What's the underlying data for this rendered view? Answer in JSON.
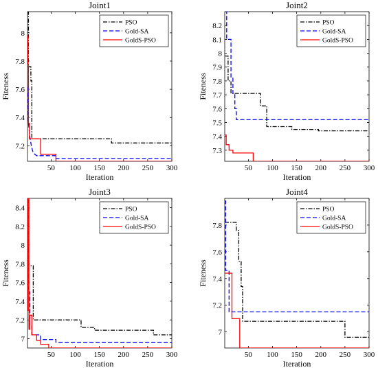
{
  "chart_data": [
    {
      "type": "line",
      "title": "Joint1",
      "xlabel": "Iteration",
      "ylabel": "Fiteness",
      "xlim": [
        1,
        300
      ],
      "ylim": [
        7.09,
        8.15
      ],
      "xticks": [
        50,
        100,
        150,
        200,
        250,
        300
      ],
      "yticks": [
        7.2,
        7.4,
        7.6,
        7.8,
        8
      ],
      "ytick_labels": [
        "7.2",
        "7.4",
        "7.6",
        "7.8",
        "8"
      ],
      "grid": false,
      "legend_position": "top-right",
      "series": [
        {
          "name": "PSO",
          "color": "#000000",
          "dash": "dashdot",
          "x": [
            1,
            3,
            3,
            8,
            8,
            10,
            10,
            175,
            175,
            300
          ],
          "y": [
            8.15,
            8.15,
            7.76,
            7.76,
            7.66,
            7.66,
            7.25,
            7.25,
            7.22,
            7.22
          ]
        },
        {
          "name": "Gold-SA",
          "color": "#0000ff",
          "dash": "dashed",
          "x": [
            1,
            3,
            6,
            9,
            12,
            16,
            20,
            28,
            28,
            60,
            60,
            300
          ],
          "y": [
            7.62,
            7.36,
            7.26,
            7.2,
            7.16,
            7.14,
            7.13,
            7.13,
            7.13,
            7.13,
            7.11,
            7.11
          ]
        },
        {
          "name": "GoldS-PSO",
          "color": "#ff0000",
          "dash": "solid",
          "x": [
            1,
            2,
            2,
            3,
            3,
            5,
            5,
            25,
            25,
            28,
            28,
            60,
            60,
            300
          ],
          "y": [
            7.98,
            7.98,
            7.78,
            7.78,
            7.36,
            7.36,
            7.25,
            7.25,
            7.25,
            7.25,
            7.14,
            7.14,
            7.09,
            7.09
          ]
        }
      ]
    },
    {
      "type": "line",
      "title": "Joint2",
      "xlabel": "Iteration",
      "ylabel": "Fiteness",
      "xlim": [
        1,
        300
      ],
      "ylim": [
        7.22,
        8.3
      ],
      "xticks": [
        50,
        100,
        150,
        200,
        250,
        300
      ],
      "yticks": [
        7.3,
        7.4,
        7.5,
        7.6,
        7.7,
        7.8,
        7.9,
        8,
        8.1,
        8.2
      ],
      "ytick_labels": [
        "7.3",
        "7.4",
        "7.5",
        "7.6",
        "7.7",
        "7.8",
        "7.9",
        "8",
        "8.1",
        "8.2"
      ],
      "grid": false,
      "legend_position": "top-right",
      "series": [
        {
          "name": "PSO",
          "color": "#000000",
          "dash": "dashdot",
          "x": [
            1,
            8,
            8,
            14,
            14,
            75,
            75,
            88,
            88,
            140,
            140,
            195,
            195,
            300
          ],
          "y": [
            7.98,
            7.98,
            7.8,
            7.8,
            7.71,
            7.71,
            7.62,
            7.62,
            7.47,
            7.47,
            7.45,
            7.45,
            7.44,
            7.44
          ]
        },
        {
          "name": "Gold-SA",
          "color": "#0000ff",
          "dash": "dashed",
          "x": [
            1,
            5,
            5,
            14,
            14,
            18,
            18,
            22,
            22,
            25,
            25,
            300
          ],
          "y": [
            8.3,
            8.3,
            8.1,
            8.1,
            7.82,
            7.82,
            7.71,
            7.71,
            7.6,
            7.6,
            7.52,
            7.52
          ]
        },
        {
          "name": "GoldS-PSO",
          "color": "#ff0000",
          "dash": "solid",
          "x": [
            1,
            4,
            4,
            10,
            10,
            18,
            18,
            60,
            60,
            300
          ],
          "y": [
            7.41,
            7.41,
            7.34,
            7.34,
            7.3,
            7.3,
            7.28,
            7.28,
            7.22,
            7.22
          ]
        }
      ]
    },
    {
      "type": "line",
      "title": "Joint3",
      "xlabel": "Iteration",
      "ylabel": "Fiteness",
      "xlim": [
        1,
        300
      ],
      "ylim": [
        6.9,
        8.5
      ],
      "xticks": [
        50,
        100,
        150,
        200,
        250,
        300
      ],
      "yticks": [
        7,
        7.2,
        7.4,
        7.6,
        7.8,
        8,
        8.2,
        8.4
      ],
      "ytick_labels": [
        "7",
        "7.2",
        "7.4",
        "7.6",
        "7.8",
        "8",
        "8.2",
        "8.4"
      ],
      "grid": false,
      "legend_position": "top-right",
      "series": [
        {
          "name": "PSO",
          "color": "#000000",
          "dash": "dashdot",
          "x": [
            1,
            3,
            3,
            13,
            13,
            112,
            112,
            140,
            140,
            262,
            262,
            300
          ],
          "y": [
            8.48,
            8.48,
            7.78,
            7.78,
            7.2,
            7.2,
            7.12,
            7.12,
            7.09,
            7.09,
            7.04,
            7.04
          ]
        },
        {
          "name": "Gold-SA",
          "color": "#0000ff",
          "dash": "dashed",
          "x": [
            1,
            3,
            3,
            6,
            6,
            10,
            10,
            28,
            28,
            60,
            60,
            300
          ],
          "y": [
            7.95,
            7.95,
            7.5,
            7.5,
            7.14,
            7.14,
            7.04,
            7.04,
            6.99,
            6.99,
            6.96,
            6.96
          ]
        },
        {
          "name": "GoldS-PSO",
          "color": "#ff0000",
          "dash": "solid",
          "x": [
            1,
            2,
            2,
            4,
            4,
            6,
            6,
            10,
            10,
            20,
            20,
            28,
            28,
            45,
            45,
            300
          ],
          "y": [
            7.3,
            7.3,
            8.5,
            8.5,
            7.1,
            7.1,
            7.25,
            7.25,
            7.04,
            7.04,
            6.98,
            6.98,
            6.94,
            6.94,
            6.9,
            6.9
          ]
        }
      ]
    },
    {
      "type": "line",
      "title": "Joint4",
      "xlabel": "Iteration",
      "ylabel": "Fiteness",
      "xlim": [
        1,
        300
      ],
      "ylim": [
        6.88,
        8.0
      ],
      "xticks": [
        50,
        100,
        150,
        200,
        250,
        300
      ],
      "yticks": [
        7,
        7.2,
        7.4,
        7.6,
        7.8
      ],
      "ytick_labels": [
        "7",
        "7.2",
        "7.4",
        "7.6",
        "7.8"
      ],
      "grid": false,
      "legend_position": "top-right",
      "series": [
        {
          "name": "PSO",
          "color": "#000000",
          "dash": "dashdot",
          "x": [
            1,
            25,
            25,
            30,
            30,
            35,
            35,
            38,
            38,
            250,
            250,
            300
          ],
          "y": [
            7.82,
            7.82,
            7.76,
            7.76,
            7.53,
            7.53,
            7.34,
            7.34,
            7.08,
            7.08,
            6.96,
            6.96
          ]
        },
        {
          "name": "Gold-SA",
          "color": "#0000ff",
          "dash": "dashed",
          "x": [
            1,
            3,
            3,
            10,
            10,
            300
          ],
          "y": [
            7.98,
            7.98,
            7.46,
            7.46,
            7.15,
            7.15
          ]
        },
        {
          "name": "GoldS-PSO",
          "color": "#ff0000",
          "dash": "solid",
          "x": [
            1,
            8,
            8,
            16,
            16,
            24,
            24,
            32,
            32,
            300
          ],
          "y": [
            7.44,
            7.44,
            7.44,
            7.44,
            7.1,
            7.1,
            7.1,
            7.1,
            6.88,
            6.88
          ]
        }
      ]
    }
  ]
}
